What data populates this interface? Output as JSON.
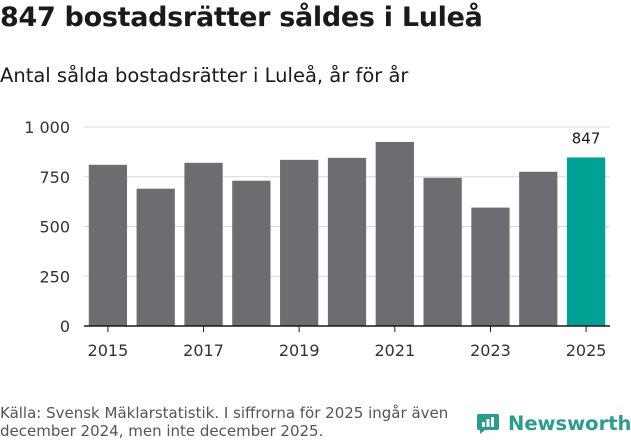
{
  "chart_data": {
    "type": "bar",
    "title": "847 bostadsrätter såldes i Luleå",
    "subtitle": "Antal sålda bostadsrätter i Luleå, år för år",
    "categories": [
      "2015",
      "2016",
      "2017",
      "2018",
      "2019",
      "2020",
      "2021",
      "2022",
      "2023",
      "2024",
      "2025"
    ],
    "values": [
      810,
      690,
      820,
      730,
      835,
      845,
      925,
      745,
      595,
      775,
      847
    ],
    "x_tick_labels": [
      "2015",
      "2017",
      "2019",
      "2021",
      "2023",
      "2025"
    ],
    "y_ticks": [
      0,
      250,
      500,
      750,
      1000
    ],
    "y_tick_labels": [
      "0",
      "250",
      "500",
      "750",
      "1 000"
    ],
    "ylim": [
      0,
      1000
    ],
    "highlight_index": 10,
    "highlight_label": "847",
    "grid": true,
    "colors": {
      "bar": "#6d6c71",
      "highlight": "#00a295",
      "grid": "#d9d9d9",
      "axis": "#1a1a1a"
    }
  },
  "footer": {
    "source": "Källa: Svensk Mäklarstatistik. I siffrorna för 2025 ingår även december 2024, men inte december 2025."
  },
  "branding": {
    "name": "Newsworthy",
    "icon": "newsworthy-logo-icon",
    "color": "#2a9d8f"
  }
}
